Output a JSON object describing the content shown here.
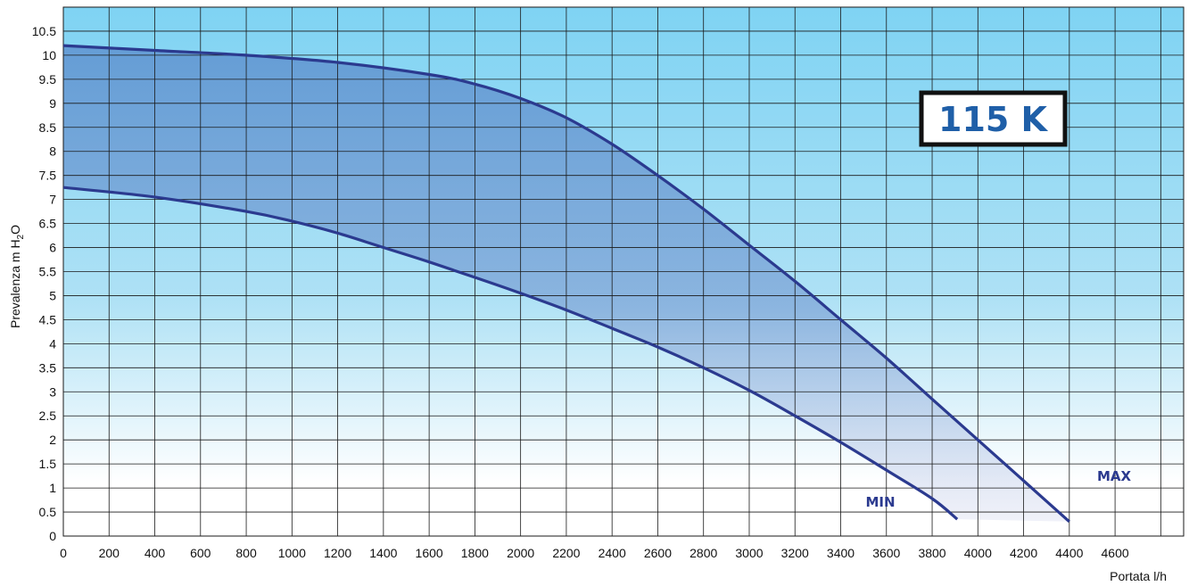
{
  "chart_data": {
    "type": "area",
    "xlabel": "Portata l/h",
    "ylabel_prefix": "Prevalenza m H",
    "ylabel_sub": "2",
    "ylabel_suffix": "O",
    "badge": "115 K",
    "xlim": [
      0,
      4900
    ],
    "ylim": [
      0,
      11
    ],
    "x_ticks": [
      "0",
      "200",
      "400",
      "600",
      "800",
      "1000",
      "1200",
      "1400",
      "1600",
      "1800",
      "2000",
      "2200",
      "2400",
      "2600",
      "2800",
      "3000",
      "3200",
      "3400",
      "3600",
      "3800",
      "4000",
      "4200",
      "4400",
      "4600"
    ],
    "y_ticks": [
      "0",
      "0.5",
      "1",
      "1.5",
      "2",
      "2.5",
      "3",
      "3.5",
      "4",
      "4.5",
      "5",
      "5.5",
      "6",
      "6.5",
      "7",
      "7.5",
      "8",
      "8.5",
      "9",
      "9.5",
      "10",
      "10.5"
    ],
    "grid": true,
    "series": [
      {
        "name": "MAX",
        "x": [
          0,
          400,
          800,
          1200,
          1600,
          1800,
          2000,
          2200,
          2400,
          2600,
          2800,
          3000,
          3200,
          3400,
          3600,
          3800,
          4000,
          4200,
          4400
        ],
        "y": [
          10.2,
          10.1,
          10.0,
          9.85,
          9.6,
          9.4,
          9.1,
          8.7,
          8.15,
          7.5,
          6.8,
          6.05,
          5.3,
          4.5,
          3.7,
          2.85,
          2.0,
          1.15,
          0.3
        ]
      },
      {
        "name": "MIN",
        "x": [
          0,
          400,
          800,
          1000,
          1200,
          1400,
          1600,
          1800,
          2000,
          2200,
          2400,
          2600,
          2800,
          3000,
          3200,
          3400,
          3600,
          3800,
          3910
        ],
        "y": [
          7.25,
          7.05,
          6.75,
          6.55,
          6.3,
          6.0,
          5.7,
          5.38,
          5.05,
          4.7,
          4.32,
          3.93,
          3.5,
          3.03,
          2.5,
          1.95,
          1.37,
          0.78,
          0.35
        ]
      }
    ],
    "colors": {
      "line": "#2b3a8f",
      "fill": "#6b9fd6",
      "grid": "#1a1a1a",
      "bg_top": "#7fd3f3",
      "bg_bottom": "#ffffff",
      "badge_text": "#1f5fa8"
    }
  }
}
